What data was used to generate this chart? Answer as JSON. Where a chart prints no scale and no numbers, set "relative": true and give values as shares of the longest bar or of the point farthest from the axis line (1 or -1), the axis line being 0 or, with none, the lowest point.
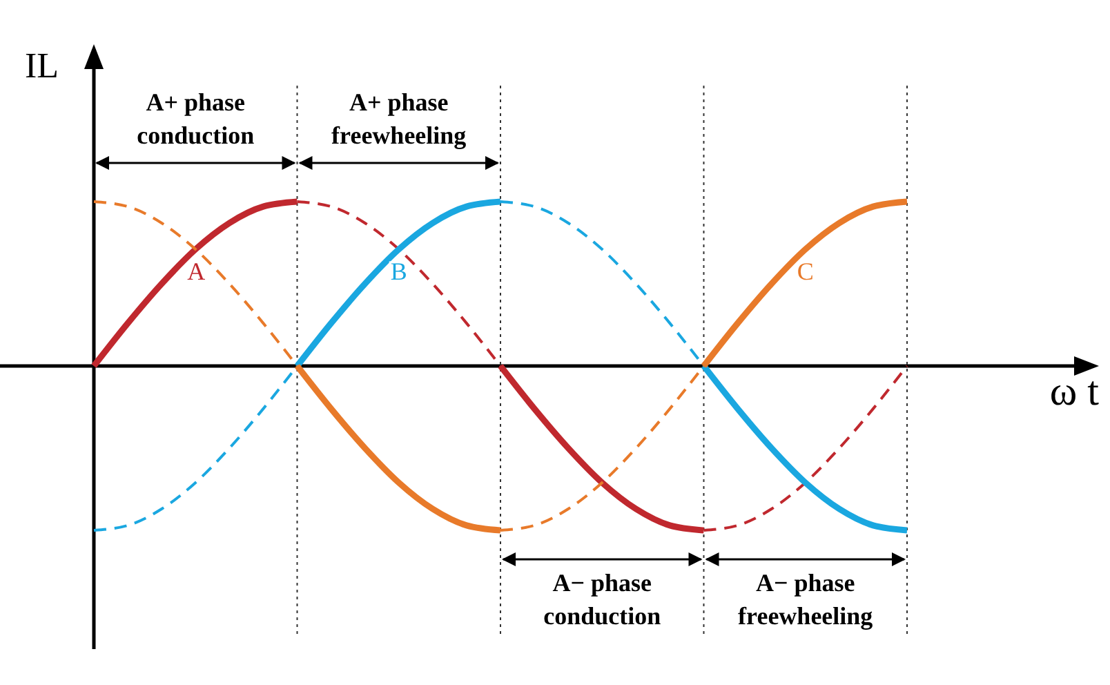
{
  "chart_data": {
    "type": "line",
    "relative": true,
    "xlabel": "ω t",
    "ylabel": "IL",
    "categories": [
      null,
      null,
      null,
      null,
      null,
      null,
      null,
      null,
      null,
      null,
      null,
      null,
      null,
      null,
      null,
      null,
      null,
      null,
      null,
      null,
      null,
      null,
      null,
      null,
      null
    ],
    "series": [
      {
        "name": "A",
        "color": "#c0282e",
        "line_style": "solid",
        "values": [
          0,
          0.26,
          0.5,
          0.71,
          0.87,
          0.97,
          1,
          null,
          null,
          null,
          null,
          null,
          null,
          null,
          null,
          null,
          null,
          null,
          null,
          null,
          null,
          null,
          null,
          null,
          null
        ]
      },
      {
        "color": "#c0282e",
        "line_style": "dashed",
        "values": [
          null,
          null,
          null,
          null,
          null,
          null,
          1,
          0.97,
          0.87,
          0.71,
          0.5,
          0.26,
          0,
          null,
          null,
          null,
          null,
          null,
          null,
          null,
          null,
          null,
          null,
          null,
          null
        ]
      },
      {
        "color": "#c0282e",
        "line_style": "solid",
        "values": [
          null,
          null,
          null,
          null,
          null,
          null,
          null,
          null,
          null,
          null,
          null,
          null,
          0,
          -0.26,
          -0.5,
          -0.71,
          -0.87,
          -0.97,
          -1,
          null,
          null,
          null,
          null,
          null,
          null
        ]
      },
      {
        "color": "#c0282e",
        "line_style": "dashed",
        "values": [
          null,
          null,
          null,
          null,
          null,
          null,
          null,
          null,
          null,
          null,
          null,
          null,
          null,
          null,
          null,
          null,
          null,
          null,
          -1,
          -0.97,
          -0.87,
          -0.71,
          -0.5,
          -0.26,
          0
        ]
      },
      {
        "color": "#1aa7e0",
        "line_style": "dashed",
        "values": [
          -1,
          -0.97,
          -0.87,
          -0.71,
          -0.5,
          -0.26,
          0,
          null,
          null,
          null,
          null,
          null,
          null,
          null,
          null,
          null,
          null,
          null,
          null,
          null,
          null,
          null,
          null,
          null,
          null
        ]
      },
      {
        "name": "B",
        "color": "#1aa7e0",
        "line_style": "solid",
        "values": [
          null,
          null,
          null,
          null,
          null,
          null,
          0,
          0.26,
          0.5,
          0.71,
          0.87,
          0.97,
          1,
          null,
          null,
          null,
          null,
          null,
          null,
          null,
          null,
          null,
          null,
          null,
          null
        ]
      },
      {
        "color": "#1aa7e0",
        "line_style": "dashed",
        "values": [
          null,
          null,
          null,
          null,
          null,
          null,
          null,
          null,
          null,
          null,
          null,
          null,
          1,
          0.97,
          0.87,
          0.71,
          0.5,
          0.26,
          0,
          null,
          null,
          null,
          null,
          null,
          null
        ]
      },
      {
        "color": "#1aa7e0",
        "line_style": "solid",
        "values": [
          null,
          null,
          null,
          null,
          null,
          null,
          null,
          null,
          null,
          null,
          null,
          null,
          null,
          null,
          null,
          null,
          null,
          null,
          0,
          -0.26,
          -0.5,
          -0.71,
          -0.87,
          -0.97,
          -1
        ]
      },
      {
        "color": "#e87a2a",
        "line_style": "dashed",
        "values": [
          1,
          0.97,
          0.87,
          0.71,
          0.5,
          0.26,
          0,
          null,
          null,
          null,
          null,
          null,
          null,
          null,
          null,
          null,
          null,
          null,
          null,
          null,
          null,
          null,
          null,
          null,
          null
        ]
      },
      {
        "color": "#e87a2a",
        "line_style": "solid",
        "values": [
          null,
          null,
          null,
          null,
          null,
          null,
          0,
          -0.26,
          -0.5,
          -0.71,
          -0.87,
          -0.97,
          -1,
          null,
          null,
          null,
          null,
          null,
          null,
          null,
          null,
          null,
          null,
          null,
          null
        ]
      },
      {
        "color": "#e87a2a",
        "line_style": "dashed",
        "values": [
          null,
          null,
          null,
          null,
          null,
          null,
          null,
          null,
          null,
          null,
          null,
          null,
          -1,
          -0.97,
          -0.87,
          -0.71,
          -0.5,
          -0.26,
          0,
          null,
          null,
          null,
          null,
          null,
          null
        ]
      },
      {
        "name": "C",
        "color": "#e87a2a",
        "line_style": "solid",
        "values": [
          null,
          null,
          null,
          null,
          null,
          null,
          null,
          null,
          null,
          null,
          null,
          null,
          null,
          null,
          null,
          null,
          null,
          null,
          0,
          0.26,
          0.5,
          0.71,
          0.87,
          0.97,
          1
        ]
      }
    ],
    "annotations": [
      "A+ phase conduction",
      "A+ phase freewheeling",
      "A− phase conduction",
      "A− phase freewheeling"
    ],
    "grid": "x"
  }
}
